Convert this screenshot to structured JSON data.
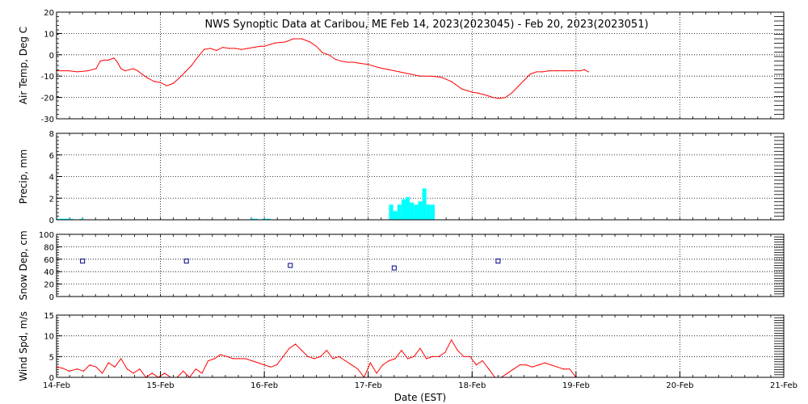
{
  "title": "NWS Synoptic Data at Caribou, ME   Feb 14, 2023(2023045) - Feb 20, 2023(2023051)",
  "x_axis": {
    "label": "Date (EST)",
    "ticks": [
      "14-Feb",
      "15-Feb",
      "16-Feb",
      "17-Feb",
      "18-Feb",
      "19-Feb",
      "20-Feb",
      "21-Feb"
    ]
  },
  "colors": {
    "air_temp": "#ff0000",
    "precip": "#00ffff",
    "snow_depth": "#00008b",
    "wind_speed": "#ff0000",
    "axes": "#000000",
    "grid": "#000000"
  },
  "chart_data": [
    {
      "type": "line",
      "ylabel": "Air Temp, Deg C",
      "ylim": [
        -30,
        20
      ],
      "yticks": [
        20,
        10,
        0,
        -10,
        -20,
        -30
      ],
      "xlim": [
        0,
        7
      ],
      "grid": true,
      "x_unit": "days since 14-Feb 00:00 EST",
      "x": [
        0,
        0.12,
        0.2,
        0.3,
        0.38,
        0.42,
        0.46,
        0.5,
        0.55,
        0.58,
        0.62,
        0.66,
        0.7,
        0.74,
        0.78,
        0.82,
        0.88,
        0.94,
        1.0,
        1.06,
        1.12,
        1.18,
        1.24,
        1.3,
        1.36,
        1.42,
        1.48,
        1.54,
        1.6,
        1.66,
        1.72,
        1.78,
        1.84,
        1.9,
        1.96,
        2.0,
        2.1,
        2.2,
        2.28,
        2.36,
        2.44,
        2.5,
        2.56,
        2.62,
        2.68,
        2.74,
        2.8,
        2.86,
        2.92,
        3.0,
        3.1,
        3.2,
        3.3,
        3.4,
        3.5,
        3.6,
        3.7,
        3.8,
        3.9,
        4.0,
        4.06,
        4.14,
        4.2,
        4.26,
        4.32,
        4.38,
        4.44,
        4.5,
        4.56,
        4.62,
        4.68,
        4.74,
        4.8,
        4.88,
        4.96,
        5.04,
        5.08,
        5.12
      ],
      "values": [
        -7.5,
        -7.5,
        -8,
        -7.5,
        -6.5,
        -3,
        -2.5,
        -2.5,
        -1.5,
        -3,
        -6.5,
        -7.5,
        -7,
        -6.5,
        -7.5,
        -9,
        -11,
        -12.5,
        -13,
        -14.5,
        -13.5,
        -11,
        -8,
        -5,
        -1,
        2.5,
        3,
        2,
        3.5,
        3,
        3,
        2.5,
        3,
        3.5,
        4,
        4,
        5.5,
        6,
        7.5,
        7.5,
        6,
        4,
        1,
        0,
        -2,
        -3,
        -3.5,
        -3.5,
        -4,
        -4.5,
        -6,
        -7,
        -8,
        -9,
        -10,
        -10,
        -10.5,
        -12.5,
        -16,
        -17.5,
        -18,
        -19,
        -20,
        -20.5,
        -20,
        -18,
        -15,
        -12,
        -9,
        -8,
        -8,
        -7.5,
        -7.5,
        -7.5,
        -7.5,
        -7.5,
        -7,
        -8
      ]
    },
    {
      "type": "bar",
      "ylabel": "Precip, mm",
      "ylim": [
        0,
        8
      ],
      "yticks": [
        8,
        6,
        4,
        2,
        0
      ],
      "xlim": [
        0,
        7
      ],
      "grid": true,
      "x_unit": "days since 14-Feb 00:00 EST",
      "bar_width": 0.04,
      "x": [
        0.0,
        0.04,
        0.08,
        0.12,
        0.22,
        1.86,
        1.9,
        1.98,
        2.02,
        3.2,
        3.24,
        3.28,
        3.32,
        3.36,
        3.4,
        3.44,
        3.48,
        3.52,
        3.56,
        3.6
      ],
      "values": [
        0.1,
        0.1,
        0.1,
        0.1,
        0.1,
        0.1,
        0.1,
        0.1,
        0.1,
        1.4,
        0.8,
        1.4,
        1.9,
        2.1,
        1.6,
        1.4,
        1.7,
        2.9,
        1.4,
        1.4
      ]
    },
    {
      "type": "scatter",
      "ylabel": "Snow Dep, cm",
      "ylim": [
        0,
        100
      ],
      "yticks": [
        100,
        80,
        60,
        40,
        20,
        0
      ],
      "xlim": [
        0,
        7
      ],
      "grid": true,
      "x_unit": "days since 14-Feb 00:00 EST",
      "x": [
        0.25,
        1.25,
        2.25,
        3.25,
        4.25
      ],
      "values": [
        57,
        57,
        50,
        46,
        57
      ]
    },
    {
      "type": "line",
      "ylabel": "Wind Spd, m/s",
      "ylim": [
        0,
        15
      ],
      "yticks": [
        15,
        10,
        5,
        0
      ],
      "xlim": [
        0,
        7
      ],
      "grid": true,
      "x_unit": "days since 14-Feb 00:00 EST",
      "x": [
        0,
        0.06,
        0.12,
        0.2,
        0.26,
        0.32,
        0.38,
        0.44,
        0.5,
        0.56,
        0.62,
        0.68,
        0.74,
        0.8,
        0.86,
        0.92,
        0.98,
        1.04,
        1.1,
        1.16,
        1.22,
        1.28,
        1.34,
        1.4,
        1.46,
        1.52,
        1.58,
        1.64,
        1.7,
        1.76,
        1.82,
        1.88,
        1.94,
        2.0,
        2.06,
        2.12,
        2.18,
        2.24,
        2.3,
        2.36,
        2.42,
        2.48,
        2.54,
        2.6,
        2.66,
        2.72,
        2.78,
        2.84,
        2.9,
        2.96,
        3.02,
        3.08,
        3.14,
        3.2,
        3.26,
        3.32,
        3.38,
        3.44,
        3.5,
        3.56,
        3.62,
        3.68,
        3.74,
        3.8,
        3.86,
        3.92,
        3.98,
        4.04,
        4.1,
        4.16,
        4.22,
        4.28,
        4.34,
        4.4,
        4.46,
        4.52,
        4.58,
        4.64,
        4.7,
        4.76,
        4.82,
        4.88,
        4.94,
        5.0
      ],
      "values": [
        2.5,
        2.2,
        1.5,
        2,
        1.5,
        3,
        2.5,
        1,
        3.5,
        2.5,
        4.5,
        2,
        1,
        2,
        0,
        1,
        0,
        1,
        0,
        0,
        1.5,
        0,
        2,
        1,
        4,
        4.5,
        5.5,
        5,
        4.5,
        4.5,
        4.5,
        4,
        3.5,
        3,
        2.5,
        3,
        5,
        7,
        8,
        6.5,
        5,
        4.5,
        5,
        6.5,
        4.5,
        5,
        4,
        3,
        2,
        0,
        3.5,
        1,
        3,
        4,
        4.5,
        6.5,
        4.5,
        5,
        7,
        4.5,
        5,
        5,
        6,
        9,
        6.5,
        5,
        5,
        3,
        4,
        2,
        0,
        0,
        1,
        2,
        3,
        3,
        2.5,
        3,
        3.5,
        3,
        2.5,
        2,
        2,
        0
      ]
    }
  ]
}
